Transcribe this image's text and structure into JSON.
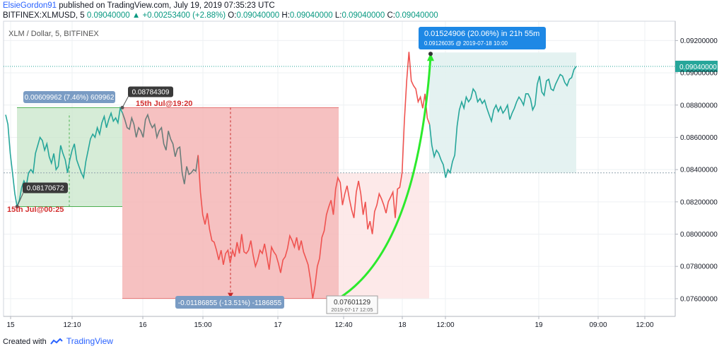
{
  "header": {
    "author": "ElsieGordon91",
    "published": "published on TradingView.com, July 19, 2019 07:35:23 UTC",
    "symbol_line": "BITFINEX:XLMUSD, 5",
    "last": "0.09040000",
    "change": "+0.00253400 (+2.88%)",
    "o_label": "O:",
    "o": "0.09040000",
    "h_label": "H:",
    "h": "0.09040000",
    "l_label": "L:",
    "l": "0.09040000",
    "c_label": "C:",
    "c": "0.09040000"
  },
  "symbol_label": "XLM / Dollar, 5, BITFINEX",
  "footer": {
    "created_with": "Created with",
    "brand": "TradingView"
  },
  "colors": {
    "up": "#26a69a",
    "down": "#ef5350",
    "green_box": "#c8e6c9",
    "red_box": "#f4b6b6",
    "grid": "#eef0f3",
    "projection": "#2cea2c",
    "price_tag": "#26a69a",
    "info_tag": "#1e88e5"
  },
  "chart_data": {
    "type": "line",
    "x_ticks": [
      "15",
      "12:10",
      "16",
      "15:00",
      "17",
      "12:40",
      "18",
      "12:00",
      "19",
      "09:00",
      "12:00"
    ],
    "y_ticks": [
      "0.09200000",
      "0.09000000",
      "0.08800000",
      "0.08600000",
      "0.08400000",
      "0.08200000",
      "0.08000000",
      "0.07800000",
      "0.07600000"
    ],
    "ylim": [
      0.0749,
      0.0932
    ],
    "current_price": "0.09040000",
    "series": [
      {
        "values": [
          0.0874,
          0.0868,
          0.085,
          0.0838,
          0.0825,
          0.0817,
          0.0821,
          0.0829,
          0.0833,
          0.083,
          0.0838,
          0.084,
          0.0838,
          0.085,
          0.0855,
          0.086,
          0.0858,
          0.0852,
          0.0856,
          0.0848,
          0.0844,
          0.085,
          0.084,
          0.0842,
          0.0855,
          0.085,
          0.0846,
          0.0838,
          0.0846,
          0.0852,
          0.0856,
          0.0846,
          0.0842,
          0.0838,
          0.0835,
          0.0845,
          0.0852,
          0.0859,
          0.0862,
          0.086,
          0.0866,
          0.0862,
          0.0869,
          0.0873,
          0.0866,
          0.0871,
          0.0875,
          0.087,
          0.0872,
          0.0869,
          0.0878,
          0.0875,
          0.0871,
          0.0866,
          0.0865,
          0.0872,
          0.0868,
          0.086,
          0.0866,
          0.0864,
          0.086,
          0.0871,
          0.0874,
          0.0869,
          0.0866,
          0.0868,
          0.086,
          0.0864,
          0.0866,
          0.0856,
          0.0852,
          0.0864,
          0.0859,
          0.0856,
          0.0848,
          0.0853,
          0.0854,
          0.0838,
          0.0831,
          0.0842,
          0.0837,
          0.0838,
          0.084,
          0.0839,
          0.0849,
          0.0826,
          0.0812,
          0.0806,
          0.0813,
          0.0803,
          0.0796,
          0.0795,
          0.079,
          0.0784,
          0.079,
          0.0781,
          0.0788,
          0.079,
          0.0782,
          0.079,
          0.0786,
          0.0795,
          0.0788,
          0.08,
          0.0789,
          0.0788,
          0.079,
          0.0796,
          0.0787,
          0.078,
          0.0784,
          0.079,
          0.0788,
          0.0794,
          0.0786,
          0.0778,
          0.0792,
          0.0789,
          0.0787,
          0.0782,
          0.0776,
          0.0784,
          0.0786,
          0.0791,
          0.0799,
          0.0796,
          0.0792,
          0.0798,
          0.079,
          0.0796,
          0.0789,
          0.0785,
          0.0781,
          0.0772,
          0.076,
          0.0768,
          0.078,
          0.0785,
          0.0798,
          0.0802,
          0.0812,
          0.0817,
          0.0821,
          0.0812,
          0.0828,
          0.0835,
          0.0832,
          0.0818,
          0.0825,
          0.083,
          0.0822,
          0.0815,
          0.081,
          0.0826,
          0.0833,
          0.0825,
          0.0812,
          0.082,
          0.0803,
          0.0808,
          0.08,
          0.0814,
          0.0818,
          0.0825,
          0.0822,
          0.0818,
          0.0813,
          0.082,
          0.0823,
          0.0826,
          0.081,
          0.0828,
          0.0829,
          0.0838,
          0.087,
          0.0895,
          0.0913,
          0.0895,
          0.0892,
          0.089,
          0.0882,
          0.0885,
          0.0878,
          0.0887,
          0.0872,
          0.0868,
          0.0855,
          0.0848,
          0.0852,
          0.085,
          0.0846,
          0.0843,
          0.0835,
          0.084,
          0.0838,
          0.0845,
          0.0849,
          0.0867,
          0.0877,
          0.0882,
          0.0878,
          0.0885,
          0.0882,
          0.0884,
          0.089,
          0.0888,
          0.0882,
          0.0884,
          0.0881,
          0.0883,
          0.0878,
          0.0874,
          0.087,
          0.0877,
          0.088,
          0.0876,
          0.0879,
          0.0875,
          0.0877,
          0.088,
          0.0871,
          0.0875,
          0.0878,
          0.0882,
          0.0885,
          0.0883,
          0.088,
          0.0887,
          0.0887,
          0.0884,
          0.0877,
          0.088,
          0.0893,
          0.0898,
          0.0888,
          0.0886,
          0.0895,
          0.0896,
          0.089,
          0.0889,
          0.0893,
          0.0896,
          0.0899,
          0.0898,
          0.0894,
          0.0892,
          0.0896,
          0.0897,
          0.0902,
          0.0904
        ]
      }
    ],
    "annotations": {
      "low_pin_label": "0.08170672",
      "low_pin_date": "15th Jul@00:25",
      "high_pin_label": "0.08784309",
      "high_pin_date": "15th Jul@19:20",
      "green_range": "0.00609962 (7.46%) 609962",
      "red_range": "-0.01186855 (-13.51%) -1186855",
      "bottom_pin_label": "0.07601129",
      "bottom_pin_date": "2019-07-17 12:05",
      "proj_line1": "0.01524906 (20.06%) in 21h 55m",
      "proj_line2": "0.09126035 @ 2019-07-18 10:00"
    }
  }
}
